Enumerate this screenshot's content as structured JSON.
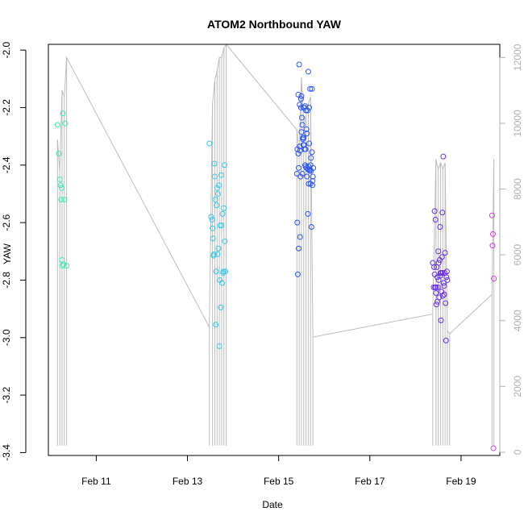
{
  "chart_data": {
    "type": "scatter",
    "title": "ATOM2 Northbound YAW",
    "xlabel": "Date",
    "ylabel": "YAW",
    "x_ticks": [
      "Feb 11",
      "Feb 13",
      "Feb 15",
      "Feb 17",
      "Feb 19"
    ],
    "x_tick_values": [
      11,
      13,
      15,
      17,
      19
    ],
    "xlim": [
      9.95,
      19.85
    ],
    "ylim": [
      -3.41,
      -1.98
    ],
    "y_ticks": [
      -3.4,
      -3.2,
      -3.0,
      -2.8,
      -2.6,
      -2.4,
      -2.2,
      -2.0
    ],
    "y_tick_labels": [
      "-3.4",
      "-3.2",
      "-3.0",
      "-2.8",
      "-2.6",
      "-2.4",
      "-2.2",
      "-2.0"
    ],
    "y2lim": [
      -100,
      12400
    ],
    "y2_ticks": [
      0,
      2000,
      4000,
      6000,
      8000,
      10000,
      12000
    ],
    "y2_tick_labels": [
      "0",
      "2000",
      "4000",
      "6000",
      "8000",
      "10000",
      "12000"
    ],
    "grid": false,
    "legend": "none",
    "colors": {
      "group1": "#3de8b6",
      "group2": "#33c8ea",
      "group3": "#2a55f0",
      "group4": "#6a2ee6",
      "group5": "#d43bdf",
      "secondary_line": "#bdbdbd"
    },
    "series": [
      {
        "color_key": "group1",
        "x": [
          10.15,
          10.18,
          10.2,
          10.22,
          10.23,
          10.24,
          10.25,
          10.26,
          10.27,
          10.28,
          10.3,
          10.32,
          10.35
        ],
        "y": [
          -2.26,
          -2.36,
          -2.45,
          -2.47,
          -2.52,
          -2.48,
          -2.73,
          -2.75,
          -2.22,
          -2.745,
          -2.52,
          -2.255,
          -2.75
        ]
      },
      {
        "color_key": "group2",
        "x": [
          13.48,
          13.52,
          13.54,
          13.55,
          13.56,
          13.57,
          13.58,
          13.59,
          13.6,
          13.61,
          13.62,
          13.63,
          13.64,
          13.65,
          13.66,
          13.67,
          13.68,
          13.69,
          13.7,
          13.71,
          13.72,
          13.73,
          13.74,
          13.75,
          13.76,
          13.77,
          13.78,
          13.79,
          13.8,
          13.81,
          13.82,
          13.83
        ],
        "y": [
          -2.325,
          -2.58,
          -2.59,
          -2.62,
          -2.655,
          -2.715,
          -2.71,
          -2.395,
          -2.44,
          -2.52,
          -2.955,
          -2.77,
          -2.54,
          -2.48,
          -2.71,
          -2.5,
          -2.69,
          -2.47,
          -3.03,
          -2.8,
          -2.61,
          -2.895,
          -2.435,
          -2.61,
          -2.81,
          -2.57,
          -2.775,
          -2.77,
          -2.55,
          -2.4,
          -2.665,
          -2.77
        ]
      },
      {
        "color_key": "group3",
        "x": [
          15.4,
          15.41,
          15.42,
          15.43,
          15.44,
          15.45,
          15.46,
          15.47,
          15.48,
          15.49,
          15.5,
          15.51,
          15.52,
          15.53,
          15.54,
          15.55,
          15.56,
          15.57,
          15.58,
          15.59,
          15.6,
          15.61,
          15.62,
          15.63,
          15.64,
          15.65,
          15.66,
          15.67,
          15.68,
          15.69,
          15.7,
          15.71,
          15.72,
          15.73,
          15.74,
          15.75,
          15.76,
          15.41,
          15.44,
          15.47,
          15.5,
          15.53,
          15.56,
          15.59,
          15.62,
          15.65,
          15.68,
          15.71,
          15.74,
          15.43,
          15.46,
          15.49,
          15.52,
          15.55,
          15.58,
          15.61,
          15.64,
          15.67,
          15.7,
          15.73
        ],
        "y": [
          -2.43,
          -2.345,
          -2.78,
          -2.155,
          -2.41,
          -2.05,
          -2.19,
          -2.35,
          -2.44,
          -2.17,
          -2.16,
          -2.235,
          -2.26,
          -2.31,
          -2.33,
          -2.2,
          -2.2,
          -2.345,
          -2.195,
          -2.405,
          -2.21,
          -2.41,
          -2.44,
          -2.21,
          -2.57,
          -2.075,
          -2.465,
          -2.2,
          -2.415,
          -2.135,
          -2.465,
          -2.42,
          -2.615,
          -2.355,
          -2.47,
          -2.44,
          -2.41,
          -2.6,
          -2.69,
          -2.65,
          -2.285,
          -2.305,
          -2.33,
          -2.345,
          -2.29,
          -2.405,
          -2.42,
          -2.375,
          -2.455,
          -2.36,
          -2.335,
          -2.2,
          -2.43,
          -2.305,
          -2.4,
          -2.275,
          -2.415,
          -2.325,
          -2.4,
          -2.135
        ]
      },
      {
        "color_key": "group4",
        "x": [
          18.38,
          18.4,
          18.41,
          18.42,
          18.43,
          18.44,
          18.45,
          18.46,
          18.47,
          18.48,
          18.49,
          18.5,
          18.51,
          18.52,
          18.53,
          18.54,
          18.55,
          18.56,
          18.57,
          18.58,
          18.59,
          18.6,
          18.61,
          18.62,
          18.63,
          18.64,
          18.65,
          18.66,
          18.67,
          18.68,
          18.69,
          18.7,
          18.42,
          18.45,
          18.48,
          18.51,
          18.54,
          18.57,
          18.6,
          18.63
        ],
        "y": [
          -2.74,
          -2.825,
          -2.755,
          -2.56,
          -2.825,
          -2.59,
          -2.825,
          -2.885,
          -2.755,
          -2.79,
          -2.825,
          -2.7,
          -2.74,
          -2.86,
          -2.73,
          -2.615,
          -2.775,
          -2.94,
          -2.775,
          -2.72,
          -2.565,
          -2.775,
          -2.37,
          -2.81,
          -2.85,
          -2.775,
          -2.705,
          -2.88,
          -3.01,
          -2.79,
          -2.77,
          -2.8,
          -2.78,
          -2.845,
          -2.875,
          -2.8,
          -2.785,
          -2.84,
          -2.855,
          -2.82
        ]
      },
      {
        "color_key": "group5",
        "x": [
          19.68,
          19.69,
          19.7,
          19.71,
          19.72
        ],
        "y": [
          -2.575,
          -2.68,
          -2.64,
          -3.385,
          -2.795
        ]
      }
    ],
    "secondary_series": {
      "axis": "right",
      "x": [
        10.15,
        10.2,
        10.25,
        10.3,
        10.35,
        13.48,
        13.55,
        13.6,
        13.65,
        13.7,
        13.75,
        13.8,
        13.85,
        15.4,
        15.45,
        15.5,
        15.55,
        15.6,
        15.65,
        15.7,
        15.75,
        18.38,
        18.45,
        18.5,
        18.55,
        18.6,
        18.65,
        18.7,
        18.75,
        19.68,
        19.72
      ],
      "y": [
        9500,
        8500,
        11000,
        10800,
        12000,
        3800,
        10600,
        11300,
        11600,
        12000,
        12000,
        12300,
        12400,
        9800,
        9100,
        11400,
        10000,
        10200,
        10600,
        10800,
        3500,
        4200,
        8900,
        8600,
        8800,
        8600,
        8800,
        3700,
        3600,
        4800,
        8900
      ]
    }
  }
}
